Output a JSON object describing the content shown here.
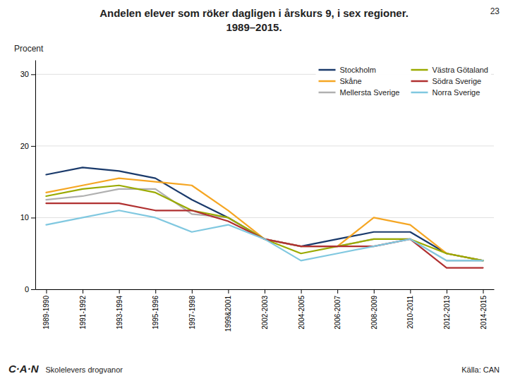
{
  "chart_data": {
    "type": "line",
    "title": "Andelen elever som röker dagligen i årskurs 9, i sex regioner.",
    "subtitle": "1989–2015.",
    "y_label": "Procent",
    "annotations": [
      "23",
      "C·A·N",
      "Skolelevers drogvanor",
      "Källa: CAN"
    ],
    "categories": [
      "1989-1990",
      "1991-1992",
      "1993-1994",
      "1995-1996",
      "1997-1998",
      "1999&2001",
      "2002-2003",
      "2004-2005",
      "2006-2007",
      "2008-2009",
      "2010-2011",
      "2012-2013",
      "2014-2015"
    ],
    "series": [
      {
        "name": "Stockholm",
        "color": "#1a3a6b",
        "values": [
          16,
          17,
          16.5,
          15.5,
          12.5,
          10,
          7,
          6,
          7,
          8,
          8,
          5,
          4
        ]
      },
      {
        "name": "Skåne",
        "color": "#f5a623",
        "values": [
          13.5,
          14.5,
          15.5,
          15,
          14.5,
          11,
          7,
          6,
          6,
          10,
          9,
          5,
          4
        ]
      },
      {
        "name": "Mellersta Sverige",
        "color": "#b0b0b0",
        "values": [
          12.5,
          13,
          14,
          14,
          10.5,
          10,
          7,
          6,
          6,
          7,
          7,
          4,
          4
        ]
      },
      {
        "name": "Västra Götaland",
        "color": "#9aaa00",
        "values": [
          13,
          14,
          14.5,
          13.5,
          11,
          10,
          7,
          5,
          6,
          7,
          7,
          5,
          4
        ]
      },
      {
        "name": "Södra Sverige",
        "color": "#b03030",
        "values": [
          12,
          12,
          12,
          11,
          11,
          9.5,
          7,
          6,
          6,
          6,
          7,
          3,
          3
        ]
      },
      {
        "name": "Norra Sverige",
        "color": "#80c8e0",
        "values": [
          9,
          10,
          11,
          10,
          8,
          9,
          7,
          4,
          5,
          6,
          7,
          4,
          4
        ]
      }
    ],
    "ylim": [
      0,
      32
    ],
    "yticks": [
      0,
      10,
      20,
      30
    ],
    "grid": true,
    "legend": "upper right"
  }
}
